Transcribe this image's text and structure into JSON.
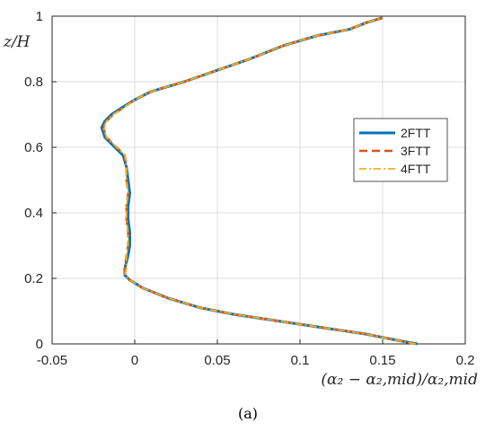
{
  "chart_data": {
    "type": "line",
    "xlabel": "(α₂ − α₂,mid)/α₂,mid",
    "ylabel": "z/H",
    "caption": "(a)",
    "xlim": [
      -0.05,
      0.2
    ],
    "ylim": [
      0,
      1
    ],
    "xticks": [
      "-0.05",
      "0",
      "0.05",
      "0.1",
      "0.15",
      "0.2"
    ],
    "yticks": [
      "0",
      "0.2",
      "0.4",
      "0.6",
      "0.8",
      "1"
    ],
    "grid": true,
    "legend": {
      "placement": "right"
    },
    "series": [
      {
        "name": "2FTT",
        "color": "#0072BD",
        "style": "solid",
        "x": [
          0.171,
          0.16,
          0.14,
          0.12,
          0.1,
          0.08,
          0.06,
          0.04,
          0.02,
          0.005,
          -0.003,
          -0.006,
          -0.006,
          -0.004,
          -0.003,
          -0.003,
          -0.004,
          -0.004,
          -0.003,
          -0.004,
          -0.005,
          -0.007,
          -0.012,
          -0.018,
          -0.02,
          -0.018,
          -0.014,
          -0.008,
          0.0,
          0.01,
          0.03,
          0.05,
          0.07,
          0.09,
          0.11,
          0.13,
          0.14,
          0.15
        ],
        "y": [
          0.0,
          0.01,
          0.03,
          0.045,
          0.06,
          0.075,
          0.09,
          0.11,
          0.14,
          0.17,
          0.195,
          0.21,
          0.23,
          0.27,
          0.3,
          0.34,
          0.38,
          0.42,
          0.46,
          0.5,
          0.54,
          0.575,
          0.6,
          0.63,
          0.66,
          0.68,
          0.7,
          0.72,
          0.745,
          0.77,
          0.8,
          0.835,
          0.87,
          0.91,
          0.94,
          0.96,
          0.98,
          0.995
        ]
      },
      {
        "name": "3FTT",
        "color": "#D95319",
        "style": "dashed",
        "x": [
          0.17,
          0.16,
          0.14,
          0.12,
          0.1,
          0.08,
          0.06,
          0.04,
          0.02,
          0.005,
          -0.003,
          -0.006,
          -0.006,
          -0.005,
          -0.004,
          -0.004,
          -0.005,
          -0.005,
          -0.004,
          -0.005,
          -0.005,
          -0.006,
          -0.011,
          -0.017,
          -0.019,
          -0.017,
          -0.013,
          -0.007,
          0.0,
          0.01,
          0.03,
          0.05,
          0.07,
          0.09,
          0.11,
          0.13,
          0.14,
          0.15
        ],
        "y": [
          0.0,
          0.01,
          0.03,
          0.045,
          0.06,
          0.075,
          0.09,
          0.11,
          0.14,
          0.17,
          0.195,
          0.21,
          0.23,
          0.27,
          0.3,
          0.34,
          0.38,
          0.42,
          0.46,
          0.5,
          0.54,
          0.575,
          0.6,
          0.63,
          0.66,
          0.68,
          0.7,
          0.72,
          0.745,
          0.77,
          0.8,
          0.835,
          0.87,
          0.91,
          0.94,
          0.96,
          0.98,
          0.995
        ]
      },
      {
        "name": "4FTT",
        "color": "#EDB120",
        "style": "dashdot",
        "x": [
          0.17,
          0.16,
          0.14,
          0.12,
          0.1,
          0.08,
          0.06,
          0.04,
          0.02,
          0.005,
          -0.003,
          -0.006,
          -0.005,
          -0.005,
          -0.004,
          -0.004,
          -0.005,
          -0.005,
          -0.004,
          -0.005,
          -0.005,
          -0.006,
          -0.011,
          -0.017,
          -0.019,
          -0.017,
          -0.013,
          -0.007,
          0.0,
          0.01,
          0.03,
          0.05,
          0.07,
          0.09,
          0.11,
          0.13,
          0.14,
          0.15
        ],
        "y": [
          0.0,
          0.01,
          0.03,
          0.045,
          0.06,
          0.075,
          0.09,
          0.11,
          0.14,
          0.17,
          0.195,
          0.21,
          0.23,
          0.27,
          0.3,
          0.34,
          0.38,
          0.42,
          0.46,
          0.5,
          0.54,
          0.575,
          0.6,
          0.63,
          0.66,
          0.68,
          0.7,
          0.72,
          0.745,
          0.77,
          0.8,
          0.835,
          0.87,
          0.91,
          0.94,
          0.96,
          0.98,
          0.995
        ]
      }
    ]
  }
}
